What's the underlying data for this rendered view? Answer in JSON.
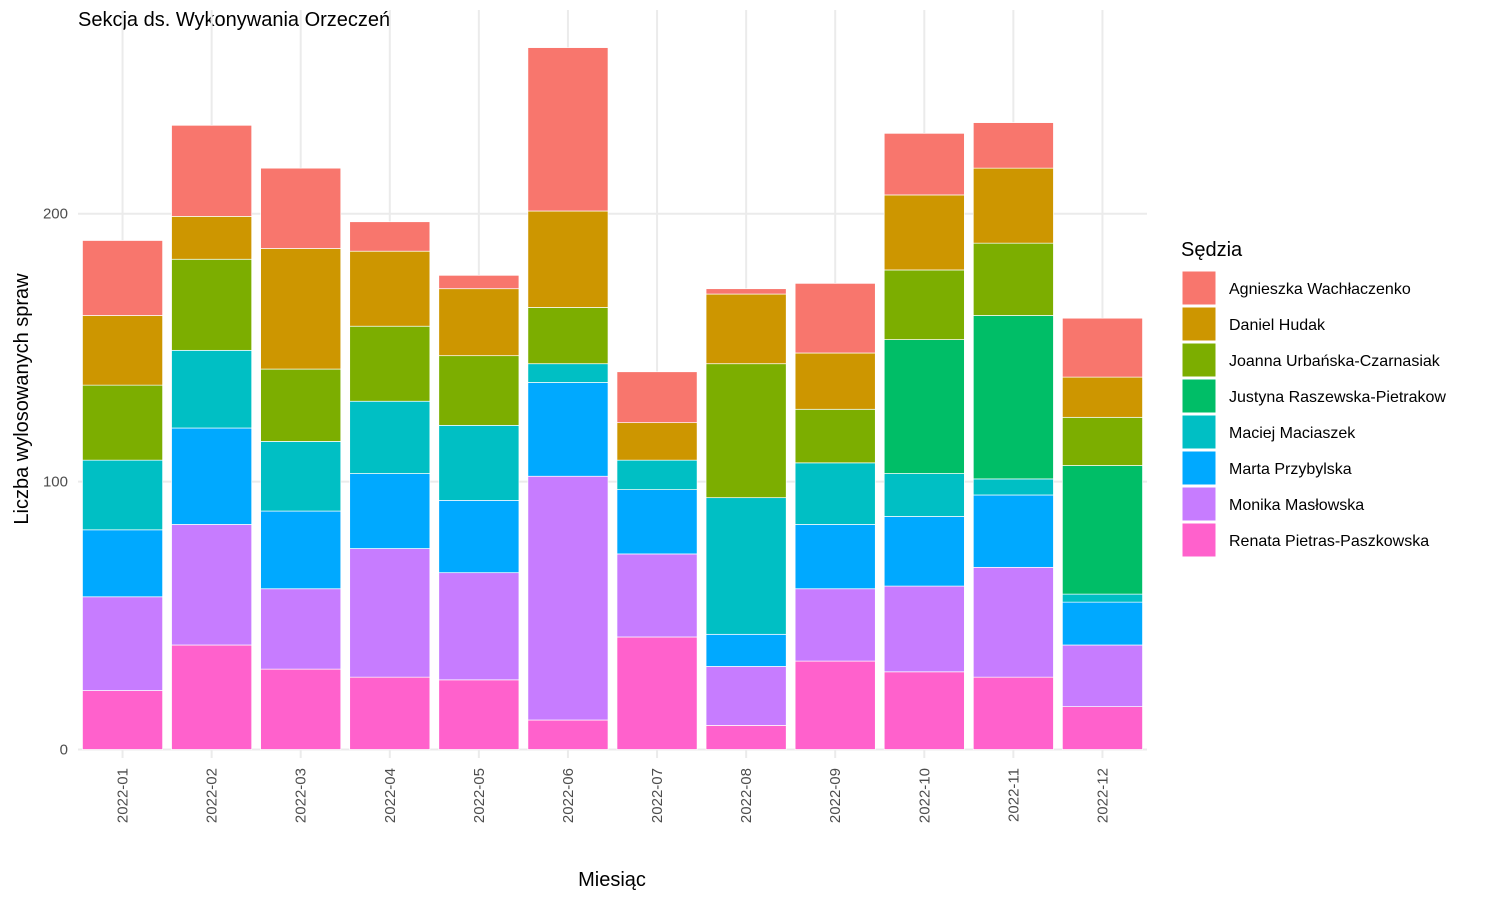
{
  "chart_data": {
    "type": "bar",
    "stacked": true,
    "title": "Sekcja ds. Wykonywania Orzeczeń",
    "xlabel": "Miesiąc",
    "ylabel": "Liczba wylosowanych spraw",
    "ylim": [
      -10,
      275
    ],
    "yticks": [
      0,
      100,
      200
    ],
    "grid": true,
    "legend_title": "Sędzia",
    "legend_position": "right",
    "categories": [
      "2022-01",
      "2022-02",
      "2022-03",
      "2022-04",
      "2022-05",
      "2022-06",
      "2022-07",
      "2022-08",
      "2022-09",
      "2022-10",
      "2022-11",
      "2022-12"
    ],
    "series": [
      {
        "name": "Renata Pietras-Paszkowska",
        "color": "#FF61CC",
        "values": [
          22,
          39,
          30,
          27,
          26,
          11,
          42,
          9,
          33,
          29,
          27,
          16
        ]
      },
      {
        "name": "Monika Masłowska",
        "color": "#C77CFF",
        "values": [
          35,
          45,
          30,
          48,
          40,
          91,
          31,
          22,
          27,
          32,
          41,
          23
        ]
      },
      {
        "name": "Marta Przybylska",
        "color": "#00A9FF",
        "values": [
          25,
          36,
          29,
          28,
          27,
          35,
          24,
          12,
          24,
          26,
          27,
          16
        ]
      },
      {
        "name": "Maciej Maciaszek",
        "color": "#00BFC4",
        "values": [
          26,
          29,
          26,
          27,
          28,
          7,
          11,
          51,
          23,
          16,
          6,
          3
        ]
      },
      {
        "name": "Justyna Raszewska-Pietrakow",
        "color": "#00BE67",
        "values": [
          0,
          0,
          0,
          0,
          0,
          0,
          0,
          0,
          0,
          50,
          61,
          48
        ]
      },
      {
        "name": "Joanna Urbańska-Czarnasiak",
        "color": "#7CAE00",
        "values": [
          28,
          34,
          27,
          28,
          26,
          21,
          0,
          50,
          20,
          26,
          27,
          18
        ]
      },
      {
        "name": "Daniel Hudak",
        "color": "#CD9600",
        "values": [
          26,
          16,
          45,
          28,
          25,
          36,
          14,
          26,
          21,
          28,
          28,
          15
        ]
      },
      {
        "name": "Agnieszka Wachłaczenko",
        "color": "#F8766D",
        "values": [
          28,
          34,
          30,
          11,
          5,
          61,
          19,
          2,
          26,
          23,
          17,
          22
        ]
      }
    ]
  }
}
